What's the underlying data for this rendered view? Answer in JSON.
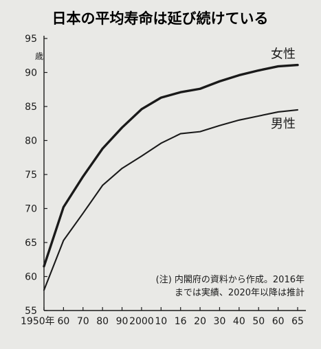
{
  "chart_data": {
    "type": "line",
    "title": "日本の平均寿命は延び続けている",
    "ylabel": "歳",
    "xlabel": "",
    "ylim": [
      55,
      95
    ],
    "yticks": [
      55,
      60,
      65,
      70,
      75,
      80,
      85,
      90,
      95
    ],
    "categories": [
      "1950年",
      "60",
      "70",
      "80",
      "90",
      "2000",
      "10",
      "16",
      "20",
      "30",
      "40",
      "50",
      "60",
      "65"
    ],
    "series": [
      {
        "name": "女性",
        "values": [
          61.5,
          70.2,
          74.7,
          78.8,
          81.9,
          84.6,
          86.3,
          87.1,
          87.6,
          88.7,
          89.6,
          90.3,
          90.9,
          91.1
        ]
      },
      {
        "name": "男性",
        "values": [
          58.0,
          65.3,
          69.3,
          73.4,
          75.9,
          77.7,
          79.6,
          81.0,
          81.3,
          82.2,
          83.0,
          83.6,
          84.2,
          84.5
        ]
      }
    ],
    "note_lines": [
      "(注) 内閣府の資料から作成。2016年",
      "までは実績、2020年以降は推計"
    ],
    "grid": false,
    "colors": {
      "line": "#1a1a1a",
      "background": "#e9e9e6"
    }
  }
}
